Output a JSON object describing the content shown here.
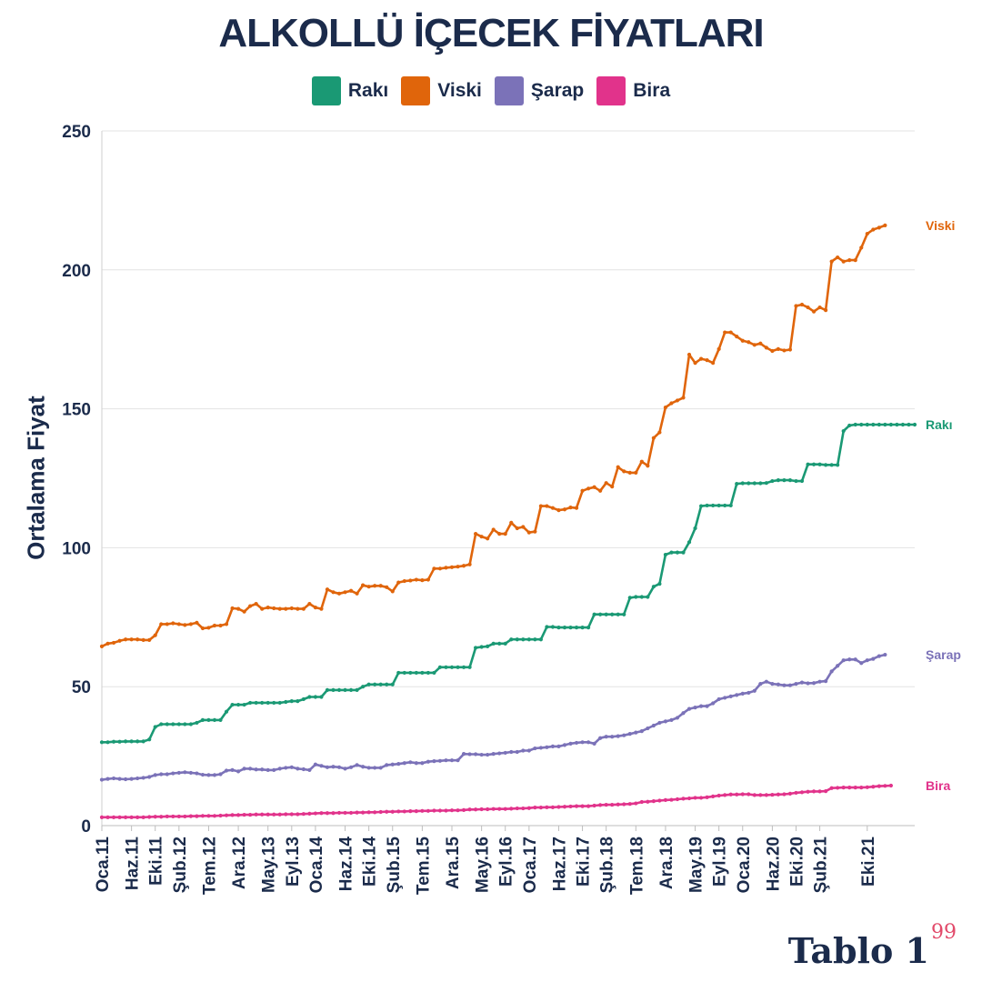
{
  "header": {
    "title": "ALKOLLÜ İÇECEK FİYATLARI"
  },
  "brand": {
    "name": "Tablo 1",
    "mark": "99"
  },
  "chart_data": {
    "type": "line",
    "title": "ALKOLLÜ İÇECEK FİYATLARI",
    "xlabel": "",
    "ylabel": "Ortalama Fiyat",
    "ylim": [
      0,
      250
    ],
    "yticks": [
      0,
      50,
      100,
      150,
      200,
      250
    ],
    "grid": true,
    "legend_position": "top",
    "x_tick_labels": [
      "Oca.11",
      "Haz.11",
      "Eki.11",
      "Şub.12",
      "Tem.12",
      "Ara.12",
      "May.13",
      "Eyl.13",
      "Oca.14",
      "Haz.14",
      "Eki.14",
      "Şub.15",
      "Tem.15",
      "Ara.15",
      "May.16",
      "Eyl.16",
      "Oca.17",
      "Haz.17",
      "Eki.17",
      "Şub.18",
      "Tem.18",
      "Ara.18",
      "May.19",
      "Eyl.19",
      "Oca.20",
      "Haz.20",
      "Eki.20",
      "Şub.21",
      "Eki.21"
    ],
    "x_tick_index": [
      0,
      5,
      9,
      13,
      18,
      23,
      28,
      32,
      36,
      41,
      45,
      49,
      54,
      59,
      64,
      68,
      72,
      77,
      81,
      85,
      90,
      95,
      100,
      104,
      108,
      113,
      117,
      121,
      129
    ],
    "series": [
      {
        "name": "Rakı",
        "color": "#1a9974",
        "end_label": "Rakı",
        "values": [
          30,
          30,
          30.2,
          30.2,
          30.3,
          30.3,
          30.3,
          30.3,
          31,
          35.5,
          36.5,
          36.5,
          36.5,
          36.5,
          36.5,
          36.5,
          37,
          38,
          38,
          38,
          38,
          41,
          43.5,
          43.5,
          43.5,
          44.2,
          44.2,
          44.2,
          44.2,
          44.2,
          44.2,
          44.5,
          44.8,
          44.8,
          45.5,
          46.3,
          46.3,
          46.3,
          48.8,
          48.8,
          48.8,
          48.8,
          48.8,
          48.8,
          50,
          50.8,
          50.8,
          50.8,
          50.8,
          50.8,
          55,
          55,
          55,
          55,
          55,
          55,
          55,
          57,
          57,
          57,
          57,
          57,
          57,
          64,
          64.3,
          64.5,
          65.5,
          65.5,
          65.5,
          67,
          67,
          67,
          67,
          67,
          67,
          71.5,
          71.5,
          71.3,
          71.3,
          71.3,
          71.3,
          71.3,
          71.3,
          76,
          76,
          76,
          76,
          76,
          76,
          82,
          82.3,
          82.3,
          82.3,
          86,
          87,
          97.5,
          98.3,
          98.3,
          98.3,
          102,
          107,
          115,
          115.2,
          115.2,
          115.2,
          115.2,
          115.2,
          123,
          123.2,
          123.2,
          123.2,
          123.2,
          123.3,
          124,
          124.3,
          124.3,
          124.3,
          124,
          124,
          130,
          130,
          130,
          129.8,
          129.8,
          129.8,
          142,
          144,
          144.3,
          144.3,
          144.3,
          144.3,
          144.3,
          144.3,
          144.3,
          144.3,
          144.3,
          144.3,
          144.3
        ]
      },
      {
        "name": "Viski",
        "color": "#e0650b",
        "end_label": "Viski",
        "values": [
          64.5,
          65.5,
          65.8,
          66.5,
          67,
          67,
          67,
          66.8,
          66.8,
          68.5,
          72.5,
          72.5,
          72.8,
          72.5,
          72.2,
          72.5,
          73,
          71,
          71.2,
          72,
          72,
          72.5,
          78.2,
          78,
          77,
          79,
          79.8,
          78,
          78.5,
          78.2,
          78,
          78,
          78.2,
          78,
          78,
          79.8,
          78.5,
          78,
          85,
          84,
          83.5,
          84,
          84.5,
          83.5,
          86.5,
          86,
          86.3,
          86.3,
          85.8,
          84.3,
          87.5,
          88,
          88.2,
          88.5,
          88.3,
          88.5,
          92.5,
          92.5,
          92.8,
          93,
          93.2,
          93.5,
          94,
          105,
          104,
          103.3,
          106.5,
          105,
          105,
          109,
          107,
          107.5,
          105.5,
          105.8,
          115,
          115,
          114.3,
          113.5,
          113.8,
          114.5,
          114.3,
          120.5,
          121.3,
          121.8,
          120.5,
          123.3,
          122,
          129,
          127.5,
          127,
          127,
          131,
          129.5,
          139.5,
          141.5,
          150.5,
          152,
          153,
          154,
          169.5,
          166.5,
          168,
          167.5,
          166.5,
          171.5,
          177.5,
          177.5,
          176,
          174.5,
          174,
          173,
          173.5,
          172,
          170.8,
          171.5,
          171,
          171.3,
          187,
          187.5,
          186.5,
          185,
          186.5,
          185.5,
          203,
          204.5,
          203,
          203.5,
          203.5,
          208,
          213,
          214.5,
          215.2,
          216
        ]
      },
      {
        "name": "Şarap",
        "color": "#7b72b8",
        "end_label": "Şarap",
        "values": [
          16.5,
          16.8,
          17,
          16.8,
          16.7,
          16.8,
          17,
          17.2,
          17.5,
          18.2,
          18.5,
          18.5,
          18.8,
          19,
          19.2,
          19,
          18.8,
          18.3,
          18.2,
          18.2,
          18.5,
          19.8,
          20,
          19.5,
          20.5,
          20.5,
          20.2,
          20.2,
          20,
          20,
          20.5,
          20.8,
          21,
          20.5,
          20.3,
          20,
          22,
          21.5,
          21,
          21.2,
          21,
          20.5,
          21,
          21.8,
          21.2,
          20.8,
          20.8,
          20.8,
          21.8,
          22,
          22.2,
          22.5,
          22.8,
          22.5,
          22.5,
          23,
          23.2,
          23.3,
          23.5,
          23.5,
          23.5,
          25.8,
          25.7,
          25.7,
          25.5,
          25.5,
          25.8,
          26,
          26.2,
          26.5,
          26.5,
          27,
          27,
          27.8,
          28,
          28.2,
          28.5,
          28.5,
          29,
          29.5,
          29.8,
          30,
          30,
          29.5,
          31.5,
          32,
          32,
          32.2,
          32.5,
          33,
          33.5,
          34,
          35,
          36,
          37,
          37.5,
          38,
          38.8,
          40.5,
          42,
          42.5,
          43,
          43,
          44,
          45.5,
          46,
          46.5,
          47,
          47.5,
          47.8,
          48.5,
          51,
          51.8,
          51,
          50.8,
          50.5,
          50.5,
          51,
          51.5,
          51.2,
          51.3,
          51.8,
          52,
          55.5,
          57.5,
          59.5,
          59.8,
          59.8,
          58.5,
          59.5,
          60,
          61,
          61.5
        ]
      },
      {
        "name": "Bira",
        "color": "#e1338b",
        "end_label": "Bira",
        "values": [
          3,
          3,
          3,
          3,
          3,
          3,
          3,
          3,
          3.1,
          3.2,
          3.2,
          3.3,
          3.3,
          3.3,
          3.3,
          3.4,
          3.4,
          3.5,
          3.5,
          3.5,
          3.6,
          3.7,
          3.8,
          3.8,
          3.9,
          3.9,
          4,
          4,
          4,
          4,
          4,
          4.1,
          4.1,
          4.1,
          4.2,
          4.3,
          4.4,
          4.5,
          4.5,
          4.5,
          4.6,
          4.6,
          4.6,
          4.7,
          4.7,
          4.8,
          4.8,
          4.9,
          5,
          5,
          5.1,
          5.1,
          5.2,
          5.2,
          5.3,
          5.3,
          5.4,
          5.4,
          5.4,
          5.5,
          5.5,
          5.6,
          5.8,
          5.8,
          5.9,
          5.9,
          6,
          6,
          6,
          6.1,
          6.2,
          6.2,
          6.3,
          6.5,
          6.5,
          6.6,
          6.6,
          6.7,
          6.8,
          6.9,
          7,
          7,
          7,
          7.2,
          7.4,
          7.5,
          7.5,
          7.6,
          7.7,
          7.8,
          8,
          8.5,
          8.6,
          8.8,
          9,
          9.2,
          9.3,
          9.5,
          9.7,
          9.8,
          10,
          10,
          10.2,
          10.5,
          10.8,
          11,
          11.2,
          11.2,
          11.3,
          11.3,
          11,
          11,
          11,
          11.1,
          11.2,
          11.3,
          11.5,
          11.8,
          12,
          12.2,
          12.3,
          12.3,
          12.4,
          13.5,
          13.6,
          13.7,
          13.7,
          13.7,
          13.7,
          13.8,
          14,
          14.2,
          14.3,
          14.4
        ]
      }
    ]
  }
}
